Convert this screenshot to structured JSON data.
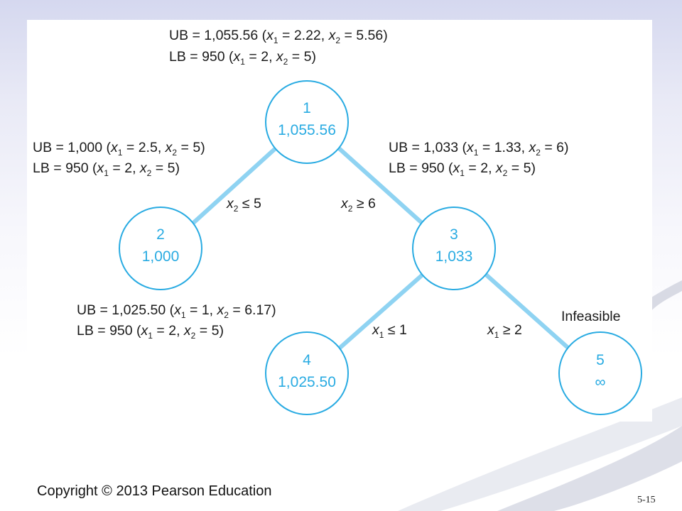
{
  "diagram": {
    "nodes": [
      {
        "id": "1",
        "value": "1,055.56"
      },
      {
        "id": "2",
        "value": "1,000"
      },
      {
        "id": "3",
        "value": "1,033"
      },
      {
        "id": "4",
        "value": "1,025.50"
      },
      {
        "id": "5",
        "value": "∞"
      }
    ],
    "bounds": {
      "node1": {
        "ub": {
          "prefix": "UB = 1,055.56 (",
          "x1": "2.22",
          "x2": "5.56"
        },
        "lb": {
          "prefix": "LB = 950 (",
          "x1": "2",
          "x2": "5"
        }
      },
      "node2": {
        "ub": {
          "prefix": "UB = 1,000 (",
          "x1": "2.5",
          "x2": "5"
        },
        "lb": {
          "prefix": "LB = 950 (",
          "x1": "2",
          "x2": "5"
        }
      },
      "node3": {
        "ub": {
          "prefix": "UB = 1,033 (",
          "x1": "1.33",
          "x2": "6"
        },
        "lb": {
          "prefix": "LB = 950 (",
          "x1": "2",
          "x2": "5"
        }
      },
      "node4": {
        "ub": {
          "prefix": "UB = 1,025.50 (",
          "x1": "1",
          "x2": "6.17"
        },
        "lb": {
          "prefix": "LB = 950 (",
          "x1": "2",
          "x2": "5"
        }
      }
    },
    "edges": {
      "e12": {
        "var": "x",
        "sub": "2",
        "op": "≤",
        "val": "5"
      },
      "e13": {
        "var": "x",
        "sub": "2",
        "op": "≥",
        "val": "6"
      },
      "e34": {
        "var": "x",
        "sub": "1",
        "op": "≤",
        "val": "1"
      },
      "e35": {
        "var": "x",
        "sub": "1",
        "op": "≥",
        "val": "2"
      }
    },
    "node5_status": "Infeasible"
  },
  "footer": {
    "copyright": "Copyright © 2013 Pearson Education",
    "page": "5-15"
  },
  "colors": {
    "accent": "#29abe2",
    "edge": "#8fd3f2",
    "text": "#1a1a1a"
  }
}
